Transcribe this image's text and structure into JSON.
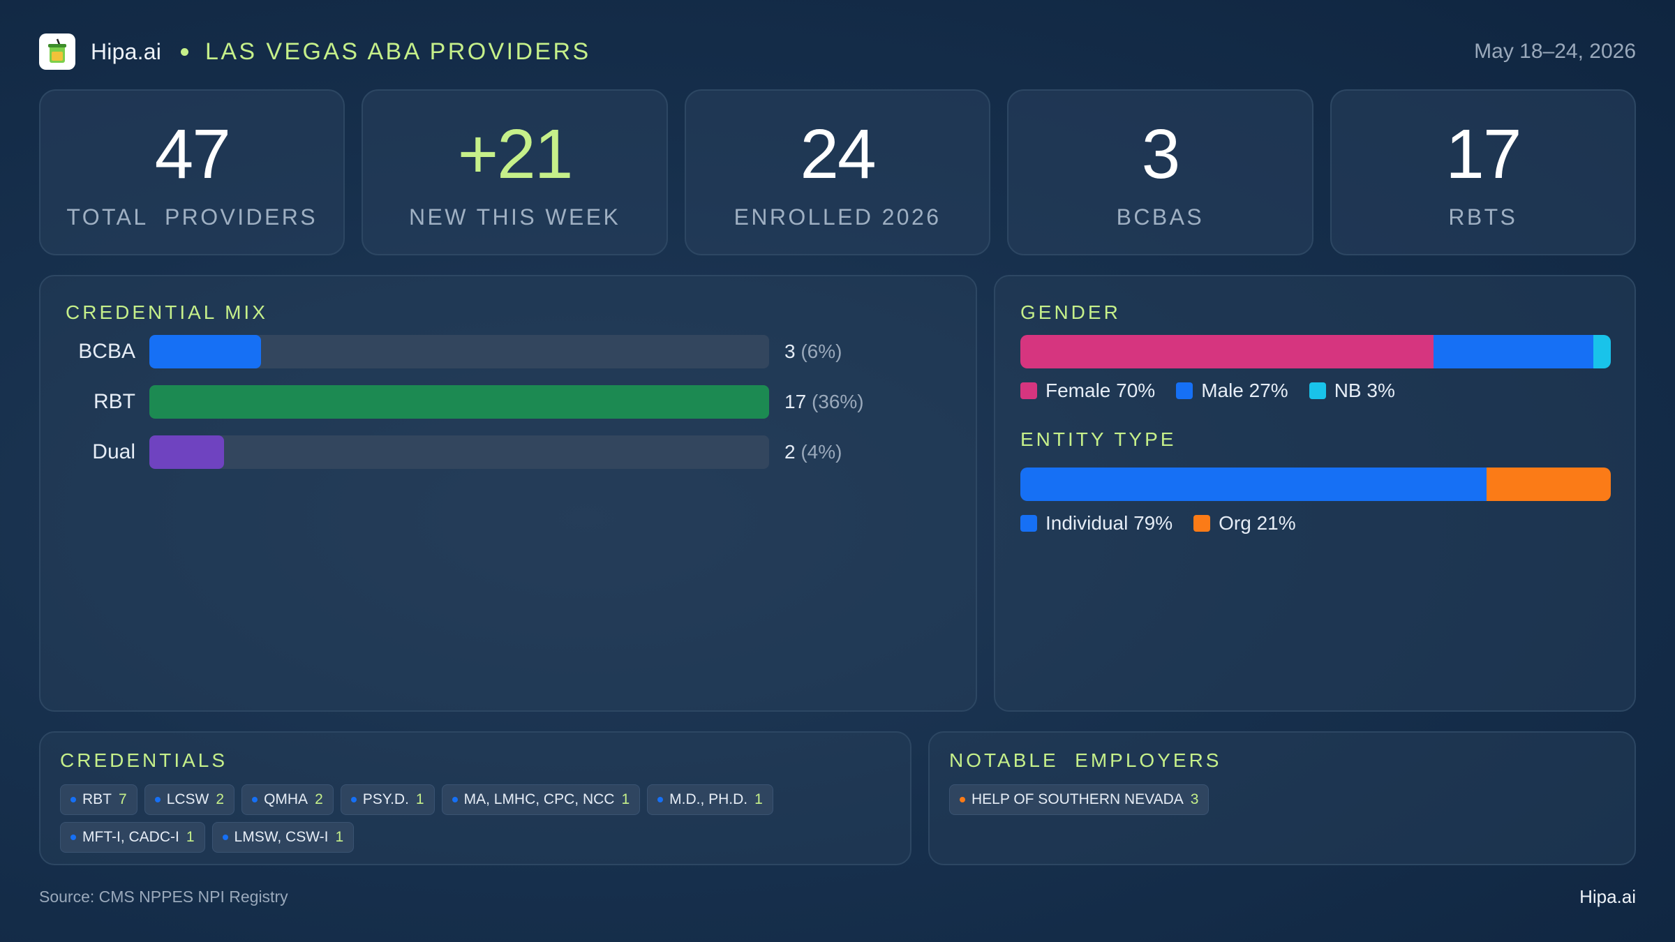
{
  "header": {
    "brand": "Hipa.ai",
    "title": "LAS VEGAS ABA PROVIDERS",
    "date_range": "May 18–24, 2026",
    "logo_icon": "cup-logo-icon"
  },
  "kpis": [
    {
      "value": "47",
      "label": "TOTAL  PROVIDERS",
      "accent": false
    },
    {
      "value": "+21",
      "label": "NEW THIS WEEK",
      "accent": true
    },
    {
      "value": "24",
      "label": "ENROLLED 2026",
      "accent": false
    },
    {
      "value": "3",
      "label": "BCBAS",
      "accent": false
    },
    {
      "value": "17",
      "label": "RBTS",
      "accent": false
    }
  ],
  "credential_mix": {
    "title": "CREDENTIAL MIX",
    "rows": [
      {
        "label": "BCBA",
        "count": "3",
        "pct": "(6%)",
        "fill_fraction": 0.18,
        "color": "#1670f5"
      },
      {
        "label": "RBT",
        "count": "17",
        "pct": "(36%)",
        "fill_fraction": 1.0,
        "color": "#1c8a52"
      },
      {
        "label": "Dual",
        "count": "2",
        "pct": "(4%)",
        "fill_fraction": 0.12,
        "color": "#6f43c0"
      }
    ]
  },
  "gender": {
    "title": "GENDER",
    "segments": [
      {
        "label": "Female 70%",
        "fraction": 0.7,
        "color": "#d6357f"
      },
      {
        "label": "Male 27%",
        "fraction": 0.27,
        "color": "#1670f5"
      },
      {
        "label": "NB 3%",
        "fraction": 0.03,
        "color": "#19c3ea"
      }
    ]
  },
  "entity_type": {
    "title": "ENTITY TYPE",
    "segments": [
      {
        "label": "Individual 79%",
        "fraction": 0.79,
        "color": "#1670f5"
      },
      {
        "label": "Org 21%",
        "fraction": 0.21,
        "color": "#fb7b17"
      }
    ]
  },
  "credentials": {
    "title": "CREDENTIALS",
    "dot_color": "#1670f5",
    "chips": [
      {
        "name": "RBT",
        "count": "7"
      },
      {
        "name": "LCSW",
        "count": "2"
      },
      {
        "name": "QMHA",
        "count": "2"
      },
      {
        "name": "PSY.D.",
        "count": "1"
      },
      {
        "name": "MA, LMHC, CPC, NCC",
        "count": "1"
      },
      {
        "name": "M.D., PH.D.",
        "count": "1"
      },
      {
        "name": "MFT-I, CADC-I",
        "count": "1"
      },
      {
        "name": "LMSW, CSW-I",
        "count": "1"
      }
    ]
  },
  "employers": {
    "title": "NOTABLE  EMPLOYERS",
    "dot_color": "#fb7b17",
    "chips": [
      {
        "name": "HELP OF SOUTHERN NEVADA",
        "count": "3"
      }
    ]
  },
  "footer": {
    "source": "Source: CMS NPPES NPI Registry",
    "brand": "Hipa.ai"
  },
  "colors": {
    "accent": "#c6f08a",
    "background": "#17304d"
  }
}
